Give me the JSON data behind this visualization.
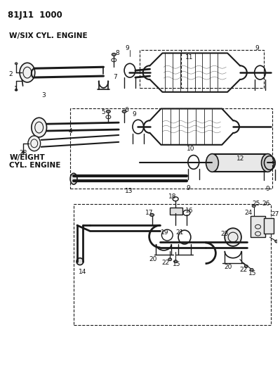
{
  "title": "81J11 1000",
  "background_color": "#ffffff",
  "line_color": "#1a1a1a",
  "text_color": "#111111",
  "fig_width": 3.99,
  "fig_height": 5.33,
  "dpi": 100,
  "six_cyl_label": "W/SIX CYL. ENGINE",
  "eight_cyl_label": "W/EIGHT\nCYL. ENGINE"
}
